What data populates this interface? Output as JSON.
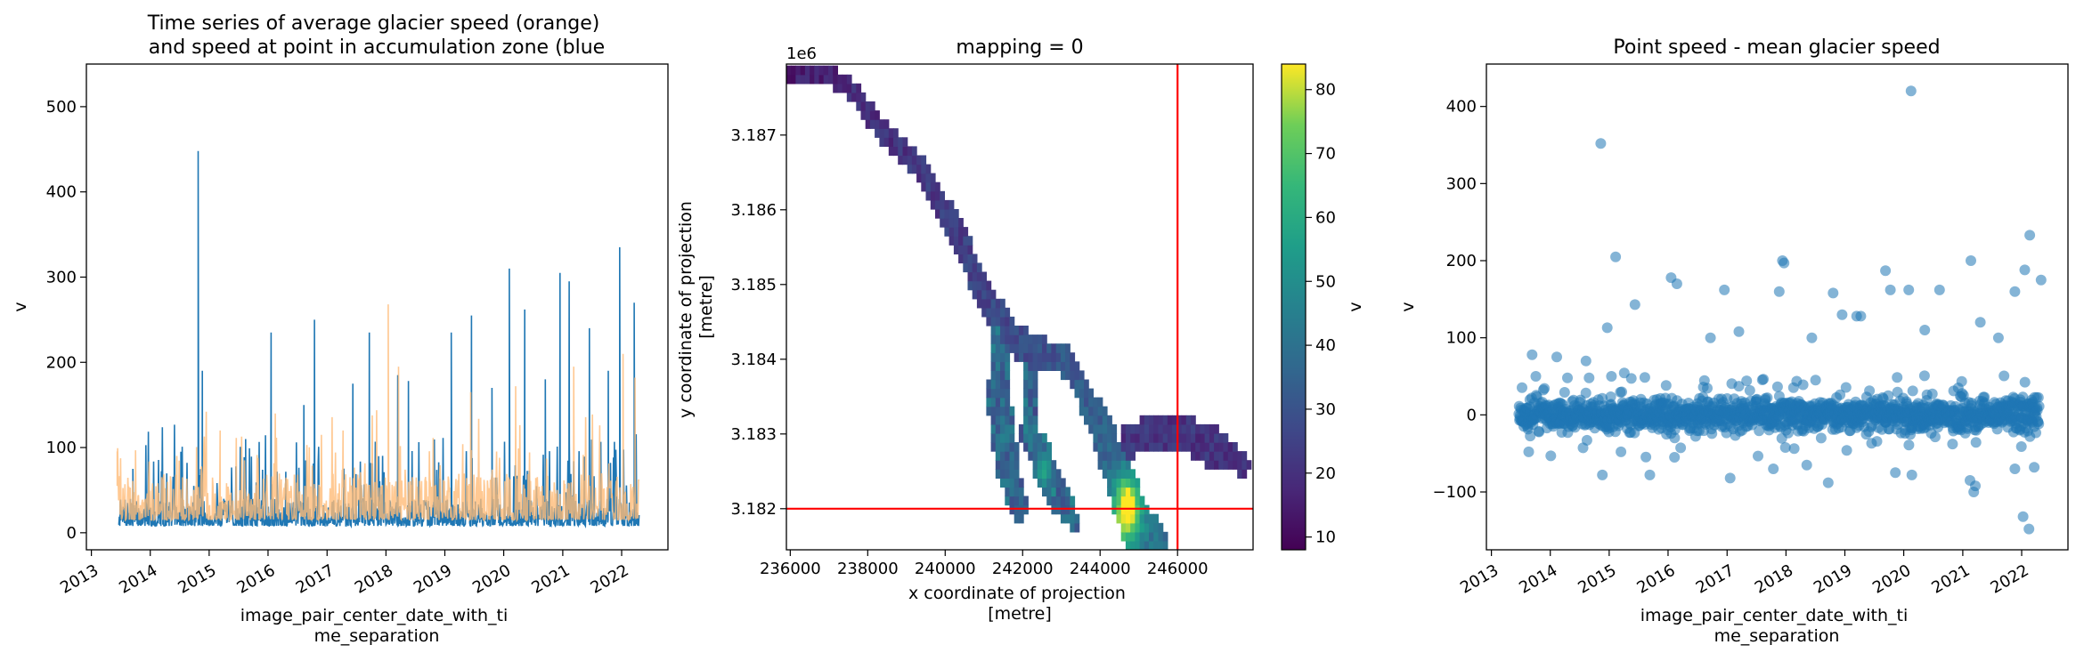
{
  "colors": {
    "blue": "#1f77b4",
    "orange": "#ffbb78",
    "red": "#ff0000"
  },
  "chart_data": [
    {
      "type": "line",
      "title": "Time series of average glacier speed (orange)\n and speed at point in accumulation zone (blue",
      "xlabel": "image_pair_center_date_with_ti\nme_separation",
      "ylabel": "v",
      "xlim": [
        "2012-12-01",
        "2022-10-15"
      ],
      "ylim": [
        -20,
        550
      ],
      "xticks": [
        "2013",
        "2014",
        "2015",
        "2016",
        "2017",
        "2018",
        "2019",
        "2020",
        "2021",
        "2022"
      ],
      "yticks": [
        0,
        100,
        200,
        300,
        400,
        500
      ],
      "series": [
        {
          "color": "blue",
          "x_range": [
            "2013-06-20",
            "2022-04-20"
          ],
          "baseline_range": [
            8,
            40
          ],
          "spikes": [
            {
              "x": "2013-09-15",
              "y": 75
            },
            {
              "x": "2014-07-10",
              "y": 95
            },
            {
              "x": "2014-10-25",
              "y": 448
            },
            {
              "x": "2014-11-20",
              "y": 190
            },
            {
              "x": "2015-08-15",
              "y": 110
            },
            {
              "x": "2016-01-20",
              "y": 235
            },
            {
              "x": "2016-08-10",
              "y": 150
            },
            {
              "x": "2016-10-15",
              "y": 250
            },
            {
              "x": "2017-06-10",
              "y": 175
            },
            {
              "x": "2017-09-20",
              "y": 235
            },
            {
              "x": "2018-03-15",
              "y": 185
            },
            {
              "x": "2018-05-20",
              "y": 178
            },
            {
              "x": "2019-02-10",
              "y": 235
            },
            {
              "x": "2019-06-15",
              "y": 255
            },
            {
              "x": "2019-10-20",
              "y": 170
            },
            {
              "x": "2020-02-05",
              "y": 310
            },
            {
              "x": "2020-05-10",
              "y": 262
            },
            {
              "x": "2020-09-15",
              "y": 180
            },
            {
              "x": "2020-12-15",
              "y": 305
            },
            {
              "x": "2021-02-10",
              "y": 295
            },
            {
              "x": "2021-06-15",
              "y": 240
            },
            {
              "x": "2021-10-10",
              "y": 190
            },
            {
              "x": "2021-12-20",
              "y": 335
            },
            {
              "x": "2022-03-20",
              "y": 270
            }
          ]
        },
        {
          "color": "orange",
          "x_range": [
            "2013-06-10",
            "2022-04-20"
          ],
          "baseline_range": [
            15,
            70
          ],
          "spikes": [
            {
              "x": "2013-06-10",
              "y": 55
            },
            {
              "x": "2014-06-15",
              "y": 90
            },
            {
              "x": "2015-03-10",
              "y": 120
            },
            {
              "x": "2016-02-15",
              "y": 140
            },
            {
              "x": "2017-04-10",
              "y": 120
            },
            {
              "x": "2018-01-15",
              "y": 268
            },
            {
              "x": "2018-03-20",
              "y": 195
            },
            {
              "x": "2019-06-10",
              "y": 165
            },
            {
              "x": "2020-03-15",
              "y": 172
            },
            {
              "x": "2021-03-10",
              "y": 195
            },
            {
              "x": "2022-01-10",
              "y": 210
            },
            {
              "x": "2022-03-25",
              "y": 182
            }
          ]
        }
      ]
    },
    {
      "type": "heatmap",
      "title": "mapping = 0",
      "xlabel": "x coordinate of projection\n[metre]",
      "ylabel": "y coordinate of projection\n[metre]",
      "offset_label": "1e6",
      "xlim": [
        235900,
        247950
      ],
      "ylim": [
        3181450,
        3187950
      ],
      "xticks": [
        236000,
        238000,
        240000,
        242000,
        244000,
        246000
      ],
      "yticks": [
        3182000,
        3183000,
        3184000,
        3185000,
        3186000,
        3187000
      ],
      "ytick_labels": [
        "3.182",
        "3.183",
        "3.184",
        "3.185",
        "3.186",
        "3.187"
      ],
      "colorbar": {
        "label": "v",
        "range": [
          8,
          84
        ],
        "ticks": [
          10,
          20,
          30,
          40,
          50,
          60,
          70,
          80
        ],
        "colormap": "viridis"
      },
      "reference_lines": {
        "x": 246000,
        "y": 3182000,
        "color": "red"
      },
      "point_location": {
        "x": 246000,
        "y": 3182000
      }
    },
    {
      "type": "scatter",
      "title": "Point speed - mean glacier speed",
      "xlabel": "image_pair_center_date_with_ti\nme_separation",
      "ylabel": "v",
      "xlim": [
        "2012-12-01",
        "2022-10-15"
      ],
      "ylim": [
        -175,
        455
      ],
      "xticks": [
        "2013",
        "2014",
        "2015",
        "2016",
        "2017",
        "2018",
        "2019",
        "2020",
        "2021",
        "2022"
      ],
      "yticks": [
        -100,
        0,
        100,
        200,
        300,
        400
      ],
      "color": "blue",
      "main_band": [
        -30,
        30
      ],
      "outliers": [
        {
          "x": "2014-11-10",
          "y": 352
        },
        {
          "x": "2020-02-15",
          "y": 420
        },
        {
          "x": "2015-02-10",
          "y": 205
        },
        {
          "x": "2017-12-10",
          "y": 200
        },
        {
          "x": "2017-12-20",
          "y": 197
        },
        {
          "x": "2021-02-20",
          "y": 200
        },
        {
          "x": "2022-02-20",
          "y": 233
        },
        {
          "x": "2019-09-10",
          "y": 187
        },
        {
          "x": "2022-01-20",
          "y": 188
        },
        {
          "x": "2022-05-01",
          "y": 175
        },
        {
          "x": "2016-01-20",
          "y": 178
        },
        {
          "x": "2016-02-25",
          "y": 170
        },
        {
          "x": "2016-12-15",
          "y": 162
        },
        {
          "x": "2017-11-20",
          "y": 160
        },
        {
          "x": "2018-10-20",
          "y": 158
        },
        {
          "x": "2019-10-10",
          "y": 162
        },
        {
          "x": "2020-02-01",
          "y": 162
        },
        {
          "x": "2020-08-10",
          "y": 162
        },
        {
          "x": "2021-11-20",
          "y": 160
        },
        {
          "x": "2015-06-10",
          "y": 143
        },
        {
          "x": "2019-03-15",
          "y": 128
        },
        {
          "x": "2019-04-10",
          "y": 128
        },
        {
          "x": "2013-09-10",
          "y": 78
        },
        {
          "x": "2014-02-10",
          "y": 75
        },
        {
          "x": "2014-08-10",
          "y": 70
        },
        {
          "x": "2014-12-20",
          "y": 113
        },
        {
          "x": "2015-01-15",
          "y": 50
        },
        {
          "x": "2016-09-20",
          "y": 100
        },
        {
          "x": "2017-03-15",
          "y": 108
        },
        {
          "x": "2018-06-10",
          "y": 100
        },
        {
          "x": "2018-12-15",
          "y": 130
        },
        {
          "x": "2020-05-10",
          "y": 110
        },
        {
          "x": "2021-04-20",
          "y": 120
        },
        {
          "x": "2021-08-10",
          "y": 100
        },
        {
          "x": "2013-08-20",
          "y": -48
        },
        {
          "x": "2014-11-20",
          "y": -78
        },
        {
          "x": "2015-03-15",
          "y": -48
        },
        {
          "x": "2015-09-10",
          "y": -78
        },
        {
          "x": "2016-02-10",
          "y": -55
        },
        {
          "x": "2017-01-20",
          "y": -82
        },
        {
          "x": "2017-10-15",
          "y": -70
        },
        {
          "x": "2018-05-10",
          "y": -65
        },
        {
          "x": "2018-09-20",
          "y": -88
        },
        {
          "x": "2019-11-10",
          "y": -75
        },
        {
          "x": "2020-02-20",
          "y": -78
        },
        {
          "x": "2021-02-15",
          "y": -85
        },
        {
          "x": "2021-03-10",
          "y": -100
        },
        {
          "x": "2021-03-20",
          "y": -92
        },
        {
          "x": "2021-11-20",
          "y": -70
        },
        {
          "x": "2022-01-10",
          "y": -132
        },
        {
          "x": "2022-02-15",
          "y": -148
        },
        {
          "x": "2022-03-20",
          "y": -68
        }
      ]
    }
  ]
}
